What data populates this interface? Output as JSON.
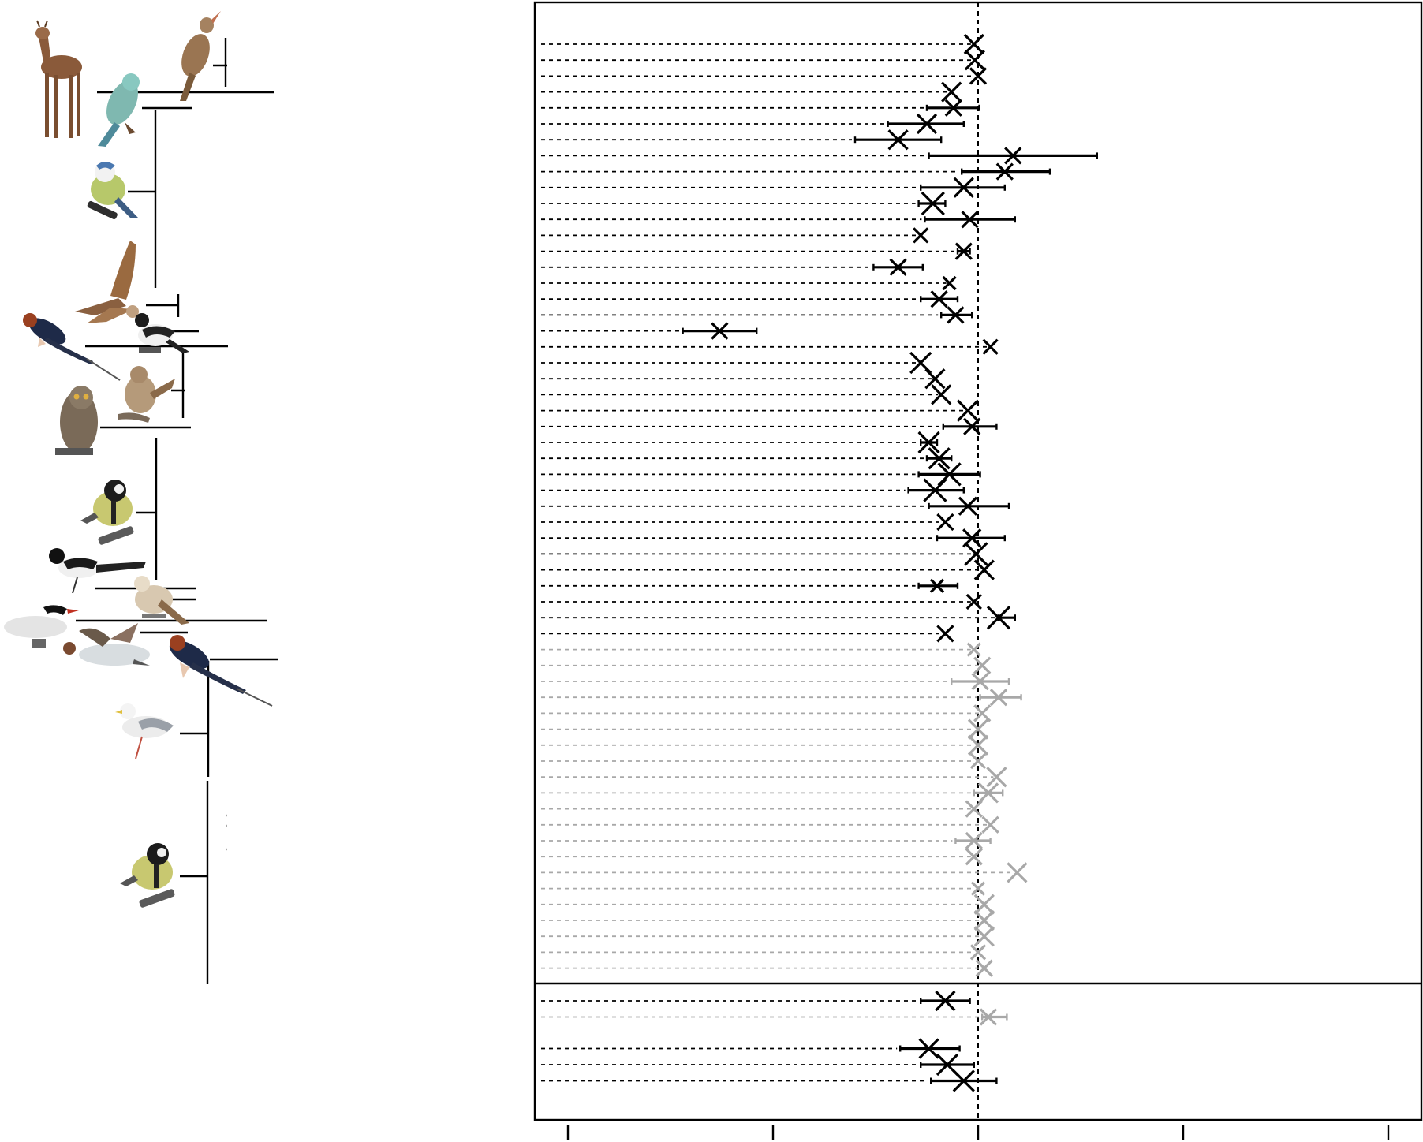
{
  "chart_data": {
    "type": "forest",
    "title": "",
    "xlabel": "",
    "ylabel": "",
    "xlim": [
      -1.0,
      1.0
    ],
    "reference_line": 0,
    "panels": [
      {
        "name": "",
        "rows": [
          {
            "est": -0.01,
            "lo": -0.01,
            "hi": -0.01,
            "color": "black",
            "size": 1.2
          },
          {
            "est": -0.008,
            "lo": -0.008,
            "hi": -0.008,
            "color": "black",
            "size": 1.2
          },
          {
            "est": 0.0,
            "lo": 0.0,
            "hi": 0.0,
            "color": "black",
            "size": 1.0
          },
          {
            "est": -0.065,
            "lo": -0.065,
            "hi": -0.065,
            "color": "black",
            "size": 1.2
          },
          {
            "est": -0.06,
            "lo": -0.125,
            "hi": 0.003,
            "color": "black",
            "size": 1.0
          },
          {
            "est": -0.125,
            "lo": -0.22,
            "hi": -0.035,
            "color": "black",
            "size": 1.2
          },
          {
            "est": -0.195,
            "lo": -0.3,
            "hi": -0.09,
            "color": "black",
            "size": 1.2
          },
          {
            "est": 0.085,
            "lo": -0.12,
            "hi": 0.29,
            "color": "black",
            "size": 1.0
          },
          {
            "est": 0.065,
            "lo": -0.04,
            "hi": 0.175,
            "color": "black",
            "size": 1.0
          },
          {
            "est": -0.035,
            "lo": -0.14,
            "hi": 0.065,
            "color": "black",
            "size": 1.2
          },
          {
            "est": -0.11,
            "lo": -0.145,
            "hi": -0.08,
            "color": "black",
            "size": 1.4
          },
          {
            "est": -0.02,
            "lo": -0.13,
            "hi": 0.09,
            "color": "black",
            "size": 1.0
          },
          {
            "est": -0.14,
            "lo": -0.14,
            "hi": -0.14,
            "color": "black",
            "size": 0.9
          },
          {
            "est": -0.035,
            "lo": -0.05,
            "hi": -0.02,
            "color": "black",
            "size": 1.0
          },
          {
            "est": -0.195,
            "lo": -0.255,
            "hi": -0.135,
            "color": "black",
            "size": 1.0
          },
          {
            "est": -0.07,
            "lo": -0.07,
            "hi": -0.07,
            "color": "black",
            "size": 0.8
          },
          {
            "est": -0.095,
            "lo": -0.14,
            "hi": -0.05,
            "color": "black",
            "size": 1.0
          },
          {
            "est": -0.055,
            "lo": -0.09,
            "hi": -0.015,
            "color": "black",
            "size": 1.0
          },
          {
            "est": -0.63,
            "lo": -0.72,
            "hi": -0.54,
            "color": "black",
            "size": 1.0
          },
          {
            "est": 0.03,
            "lo": 0.03,
            "hi": 0.03,
            "color": "black",
            "size": 0.9
          },
          {
            "est": -0.14,
            "lo": -0.14,
            "hi": -0.14,
            "color": "black",
            "size": 1.3
          },
          {
            "est": -0.105,
            "lo": -0.105,
            "hi": -0.105,
            "color": "black",
            "size": 1.2
          },
          {
            "est": -0.09,
            "lo": -0.09,
            "hi": -0.09,
            "color": "black",
            "size": 1.2
          },
          {
            "est": -0.025,
            "lo": -0.025,
            "hi": -0.025,
            "color": "black",
            "size": 1.3
          },
          {
            "est": -0.015,
            "lo": -0.085,
            "hi": 0.045,
            "color": "black",
            "size": 1.0
          },
          {
            "est": -0.12,
            "lo": -0.14,
            "hi": -0.1,
            "color": "black",
            "size": 1.3
          },
          {
            "est": -0.095,
            "lo": -0.125,
            "hi": -0.065,
            "color": "black",
            "size": 1.3
          },
          {
            "est": -0.07,
            "lo": -0.145,
            "hi": 0.005,
            "color": "black",
            "size": 1.4
          },
          {
            "est": -0.105,
            "lo": -0.17,
            "hi": -0.035,
            "color": "black",
            "size": 1.4
          },
          {
            "est": -0.025,
            "lo": -0.12,
            "hi": 0.075,
            "color": "black",
            "size": 1.1
          },
          {
            "est": -0.08,
            "lo": -0.08,
            "hi": -0.08,
            "color": "black",
            "size": 1.0
          },
          {
            "est": -0.015,
            "lo": -0.1,
            "hi": 0.065,
            "color": "black",
            "size": 1.1
          },
          {
            "est": -0.005,
            "lo": -0.005,
            "hi": -0.005,
            "color": "black",
            "size": 1.4
          },
          {
            "est": 0.015,
            "lo": 0.015,
            "hi": 0.015,
            "color": "black",
            "size": 1.2
          },
          {
            "est": -0.1,
            "lo": -0.145,
            "hi": -0.05,
            "color": "black",
            "size": 0.8
          },
          {
            "est": -0.01,
            "lo": -0.01,
            "hi": -0.01,
            "color": "black",
            "size": 0.9
          },
          {
            "est": 0.05,
            "lo": 0.05,
            "hi": 0.09,
            "color": "black",
            "size": 1.4
          },
          {
            "est": -0.08,
            "lo": -0.08,
            "hi": -0.08,
            "color": "black",
            "size": 1.0
          },
          {
            "est": -0.01,
            "lo": -0.01,
            "hi": -0.01,
            "color": "gray",
            "size": 0.8
          },
          {
            "est": 0.01,
            "lo": 0.01,
            "hi": 0.01,
            "color": "gray",
            "size": 1.0
          },
          {
            "est": 0.005,
            "lo": -0.065,
            "hi": 0.075,
            "color": "gray",
            "size": 1.0
          },
          {
            "est": 0.05,
            "lo": 0.005,
            "hi": 0.105,
            "color": "gray",
            "size": 1.0
          },
          {
            "est": 0.01,
            "lo": 0.01,
            "hi": 0.01,
            "color": "gray",
            "size": 1.0
          },
          {
            "est": 0.0,
            "lo": 0.0,
            "hi": 0.0,
            "color": "gray",
            "size": 1.2
          },
          {
            "est": 0.0,
            "lo": 0.0,
            "hi": 0.0,
            "color": "gray",
            "size": 1.2
          },
          {
            "est": 0.0,
            "lo": 0.0,
            "hi": 0.0,
            "color": "gray",
            "size": 0.9
          },
          {
            "est": 0.045,
            "lo": 0.045,
            "hi": 0.045,
            "color": "gray",
            "size": 1.2
          },
          {
            "est": 0.025,
            "lo": -0.01,
            "hi": 0.06,
            "color": "gray",
            "size": 1.2
          },
          {
            "est": -0.01,
            "lo": -0.01,
            "hi": -0.01,
            "color": "gray",
            "size": 1.0
          },
          {
            "est": 0.03,
            "lo": 0.03,
            "hi": 0.03,
            "color": "gray",
            "size": 1.0
          },
          {
            "est": -0.01,
            "lo": -0.055,
            "hi": 0.03,
            "color": "gray",
            "size": 1.0
          },
          {
            "est": -0.01,
            "lo": -0.01,
            "hi": -0.01,
            "color": "gray",
            "size": 1.0
          },
          {
            "est": 0.095,
            "lo": 0.095,
            "hi": 0.095,
            "color": "gray",
            "size": 1.2
          },
          {
            "est": 0.0,
            "lo": 0.0,
            "hi": 0.0,
            "color": "gray",
            "size": 0.8
          },
          {
            "est": 0.015,
            "lo": 0.015,
            "hi": 0.015,
            "color": "gray",
            "size": 1.2
          },
          {
            "est": 0.015,
            "lo": 0.015,
            "hi": 0.015,
            "color": "gray",
            "size": 1.2
          },
          {
            "est": 0.015,
            "lo": 0.015,
            "hi": 0.015,
            "color": "gray",
            "size": 1.2
          },
          {
            "est": 0.0,
            "lo": 0.0,
            "hi": 0.0,
            "color": "gray",
            "size": 0.9
          },
          {
            "est": 0.015,
            "lo": 0.015,
            "hi": 0.015,
            "color": "gray",
            "size": 1.0
          }
        ]
      },
      {
        "name": "",
        "rows": [
          {
            "est": -0.08,
            "lo": -0.14,
            "hi": -0.02,
            "color": "black",
            "size": 1.2,
            "gap_after": false
          },
          {
            "est": 0.025,
            "lo": 0.01,
            "hi": 0.07,
            "color": "gray",
            "size": 1.0,
            "gap_after": true
          },
          {
            "est": -0.12,
            "lo": -0.19,
            "hi": -0.045,
            "color": "black",
            "size": 1.2,
            "gap_after": false
          },
          {
            "est": -0.075,
            "lo": -0.14,
            "hi": -0.01,
            "color": "black",
            "size": 1.3,
            "gap_after": false
          },
          {
            "est": -0.035,
            "lo": -0.115,
            "hi": 0.045,
            "color": "black",
            "size": 1.3,
            "gap_after": false
          }
        ]
      }
    ],
    "colors": {
      "black": "#000000",
      "gray": "#a8a8a8",
      "dash": "#000000"
    },
    "phylogeny_images": [
      "roe-deer-icon",
      "reed-warbler-icon",
      "european-roller-icon",
      "blue-tit-icon",
      "kestrel-icon",
      "barn-swallow-icon",
      "pied-flycatcher-icon",
      "song-sparrow-icon",
      "scops-owl-icon",
      "great-tit-icon",
      "magpie-icon",
      "snow-bunting-icon",
      "arctic-tern-icon",
      "merganser-icon",
      "barn-swallow-icon",
      "gull-icon",
      "great-tit-icon"
    ]
  }
}
